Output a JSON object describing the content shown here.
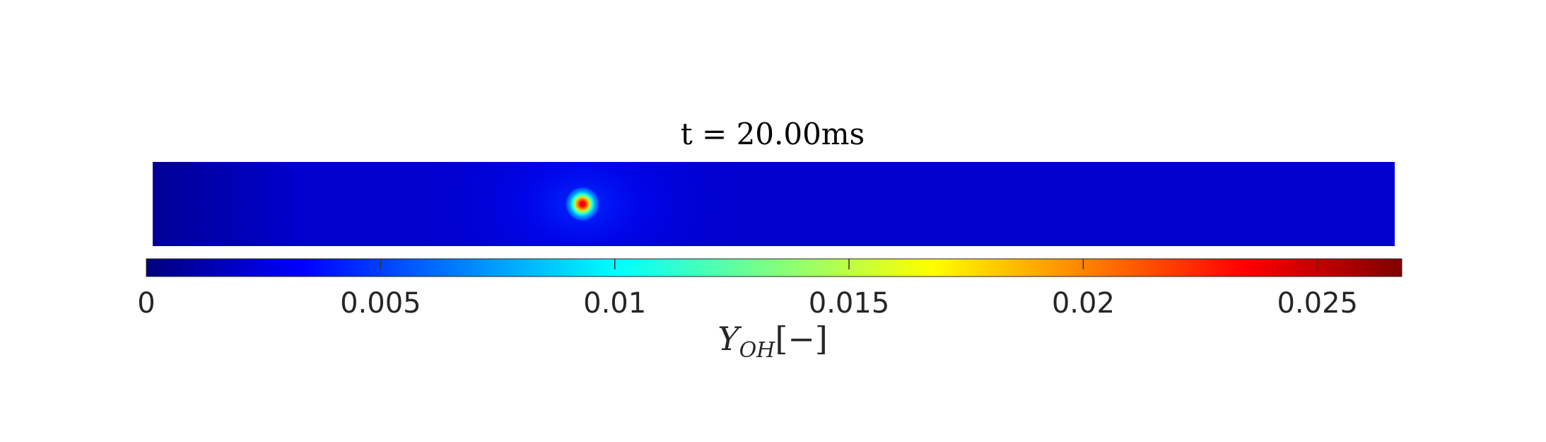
{
  "chart_data": {
    "type": "heatmap",
    "title": "t = 20.00ms",
    "colormap": "jet",
    "colors": {
      "jet": [
        "#00007f",
        "#0000ff",
        "#00ffff",
        "#ffff00",
        "#ff0000",
        "#7f0000"
      ],
      "tick_line": "#333333",
      "text": "#262626"
    },
    "colorbar": {
      "range": [
        0,
        0.0268
      ],
      "ticks": [
        0,
        0.005,
        0.01,
        0.015,
        0.02,
        0.025
      ],
      "tick_labels": [
        "0",
        "0.005",
        "0.01",
        "0.015",
        "0.02",
        "0.025"
      ],
      "label": {
        "main": "Y",
        "sub": "OH",
        "suffix": "[−]"
      }
    },
    "field": {
      "background_value": 0.0021,
      "left_edge_value": 0.0006,
      "hotspot": {
        "peak_value": 0.0245,
        "halo_value": 0.0045,
        "x_fraction": 0.346,
        "y_fraction": 0.5
      }
    }
  }
}
